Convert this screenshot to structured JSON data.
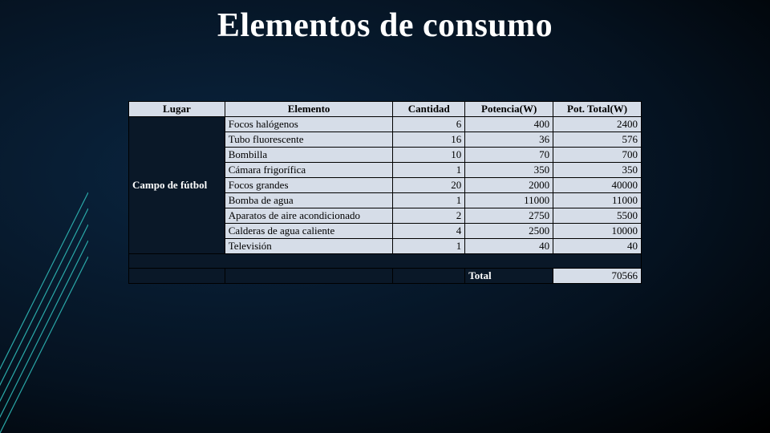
{
  "title": "Elementos de consumo",
  "table": {
    "columns": [
      "Lugar",
      "Elemento",
      "Cantidad",
      "Potencia(W)",
      "Pot. Total(W)"
    ],
    "lugar": "Campo de fútbol",
    "rows": [
      {
        "elemento": "Focos halógenos",
        "cantidad": 6,
        "potencia": 400,
        "total": 2400
      },
      {
        "elemento": "Tubo fluorescente",
        "cantidad": 16,
        "potencia": 36,
        "total": 576
      },
      {
        "elemento": "Bombilla",
        "cantidad": 10,
        "potencia": 70,
        "total": 700
      },
      {
        "elemento": "Cámara frigorífica",
        "cantidad": 1,
        "potencia": 350,
        "total": 350
      },
      {
        "elemento": "Focos grandes",
        "cantidad": 20,
        "potencia": 2000,
        "total": 40000
      },
      {
        "elemento": "Bomba de agua",
        "cantidad": 1,
        "potencia": 11000,
        "total": 11000
      },
      {
        "elemento": "Aparatos de aire acondicionado",
        "cantidad": 2,
        "potencia": 2750,
        "total": 5500
      },
      {
        "elemento": "Calderas de agua caliente",
        "cantidad": 4,
        "potencia": 2500,
        "total": 10000
      },
      {
        "elemento": "Televisión",
        "cantidad": 1,
        "potencia": 40,
        "total": 40
      }
    ],
    "total_label": "Total",
    "total_value": 70566
  },
  "style": {
    "header_bg": "#d6dde8",
    "cell_bg": "#d6dde8",
    "dark_bg": "#0a1828",
    "accent_color": "#2aa8a8",
    "title_fontsize": 42,
    "table_fontsize": 13
  }
}
